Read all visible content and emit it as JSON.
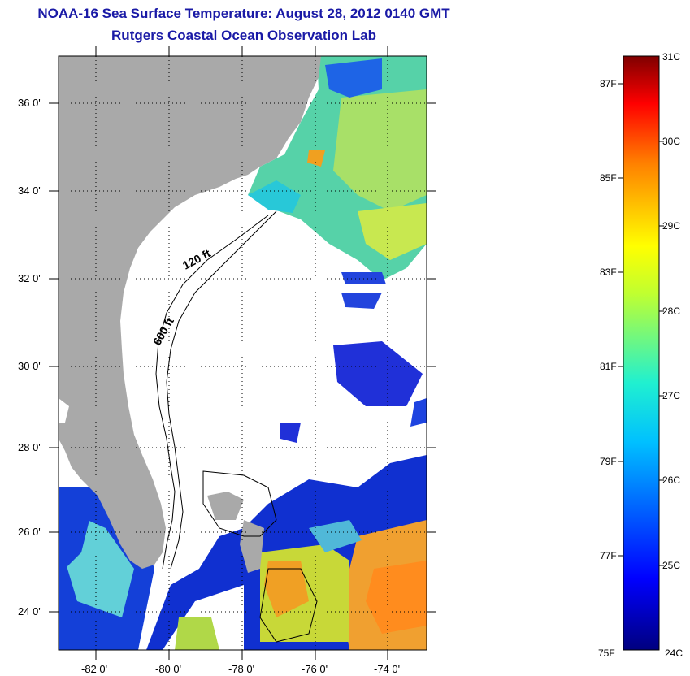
{
  "title": "NOAA-16 Sea Surface Temperature:  August 28, 2012 0140 GMT",
  "subtitle": "Rutgers Coastal Ocean Observation Lab",
  "map": {
    "lat_ticks": [
      "36 0'",
      "34 0'",
      "32 0'",
      "30 0'",
      "28 0'",
      "26 0'",
      "24 0'"
    ],
    "lon_ticks": [
      "-82 0'",
      "-80 0'",
      "-78 0'",
      "-76 0'",
      "-74 0'"
    ],
    "isobaths": [
      "120 ft",
      "600 ft"
    ],
    "land_color": "#a9a9a9",
    "ocean_nodata_color": "#ffffff"
  },
  "colorbar": {
    "celsius": [
      "31C",
      "30C",
      "29C",
      "28C",
      "27C",
      "26C",
      "25C",
      "24C"
    ],
    "fahrenheit": [
      "87F",
      "85F",
      "83F",
      "81F",
      "79F",
      "77F",
      "75F"
    ],
    "range_c": [
      24,
      31
    ]
  }
}
